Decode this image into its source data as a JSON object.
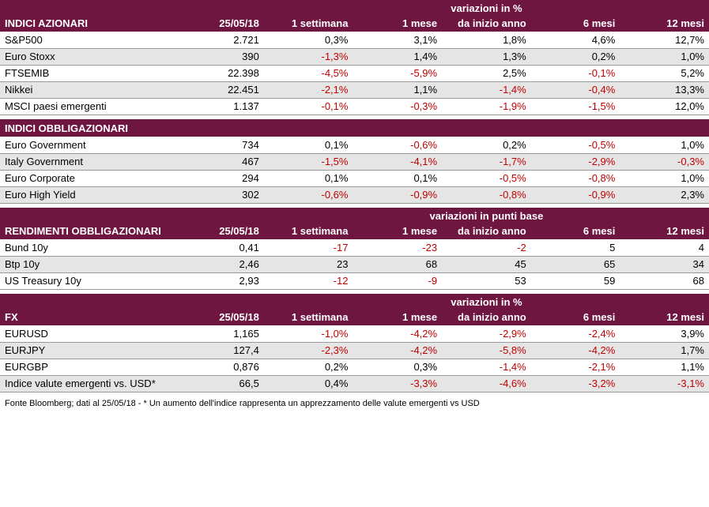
{
  "colors": {
    "header_bg": "#6e1540",
    "header_fg": "#ffffff",
    "shade_bg": "#e5e5e5",
    "row_border": "#999999",
    "neg_color": "#c00000",
    "pos_color": "#000000"
  },
  "columns": {
    "date": "25/05/18",
    "c1": "1 settimana",
    "c2": "1 mese",
    "c3": "da inizio anno",
    "c4": "6 mesi",
    "c5": "12 mesi"
  },
  "sections": [
    {
      "title": "INDICI AZIONARI",
      "variation_label": "variazioni in %",
      "show_cols": true,
      "rows": [
        {
          "name": "S&P500",
          "val": "2.721",
          "c": [
            "0,3%",
            "3,1%",
            "1,8%",
            "4,6%",
            "12,7%"
          ]
        },
        {
          "name": "Euro Stoxx",
          "val": "390",
          "c": [
            "-1,3%",
            "1,4%",
            "1,3%",
            "0,2%",
            "1,0%"
          ]
        },
        {
          "name": "FTSEMIB",
          "val": "22.398",
          "c": [
            "-4,5%",
            "-5,9%",
            "2,5%",
            "-0,1%",
            "5,2%"
          ]
        },
        {
          "name": "Nikkei",
          "val": "22.451",
          "c": [
            "-2,1%",
            "1,1%",
            "-1,4%",
            "-0,4%",
            "13,3%"
          ]
        },
        {
          "name": "MSCI paesi emergenti",
          "val": "1.137",
          "c": [
            "-0,1%",
            "-0,3%",
            "-1,9%",
            "-1,5%",
            "12,0%"
          ]
        }
      ]
    },
    {
      "title": "INDICI OBBLIGAZIONARI",
      "variation_label": "",
      "show_cols": false,
      "rows": [
        {
          "name": "Euro Government",
          "val": "734",
          "c": [
            "0,1%",
            "-0,6%",
            "0,2%",
            "-0,5%",
            "1,0%"
          ]
        },
        {
          "name": "Italy Government",
          "val": "467",
          "c": [
            "-1,5%",
            "-4,1%",
            "-1,7%",
            "-2,9%",
            "-0,3%"
          ]
        },
        {
          "name": "Euro Corporate",
          "val": "294",
          "c": [
            "0,1%",
            "0,1%",
            "-0,5%",
            "-0,8%",
            "1,0%"
          ]
        },
        {
          "name": "Euro High Yield",
          "val": "302",
          "c": [
            "-0,6%",
            "-0,9%",
            "-0,8%",
            "-0,9%",
            "2,3%"
          ]
        }
      ]
    },
    {
      "title": "RENDIMENTI OBBLIGAZIONARI",
      "variation_label": "variazioni in punti base",
      "show_cols": true,
      "rows": [
        {
          "name": "Bund 10y",
          "val": "0,41",
          "c": [
            "-17",
            "-23",
            "-2",
            "5",
            "4"
          ]
        },
        {
          "name": "Btp 10y",
          "val": "2,46",
          "c": [
            "23",
            "68",
            "45",
            "65",
            "34"
          ]
        },
        {
          "name": "US Treasury 10y",
          "val": "2,93",
          "c": [
            "-12",
            "-9",
            "53",
            "59",
            "68"
          ]
        }
      ]
    },
    {
      "title": "FX",
      "variation_label": "variazioni in %",
      "show_cols": true,
      "rows": [
        {
          "name": "EURUSD",
          "val": "1,165",
          "c": [
            "-1,0%",
            "-4,2%",
            "-2,9%",
            "-2,4%",
            "3,9%"
          ]
        },
        {
          "name": "EURJPY",
          "val": "127,4",
          "c": [
            "-2,3%",
            "-4,2%",
            "-5,8%",
            "-4,2%",
            "1,7%"
          ]
        },
        {
          "name": "EURGBP",
          "val": "0,876",
          "c": [
            "0,2%",
            "0,3%",
            "-1,4%",
            "-2,1%",
            "1,1%"
          ]
        },
        {
          "name": "Indice valute emergenti vs. USD*",
          "val": "66,5",
          "c": [
            "0,4%",
            "-3,3%",
            "-4,6%",
            "-3,2%",
            "-3,1%"
          ]
        }
      ]
    }
  ],
  "footnote": "Fonte Bloomberg; dati al 25/05/18 - * Un aumento dell'indice rappresenta un apprezzamento delle valute emergenti vs USD"
}
